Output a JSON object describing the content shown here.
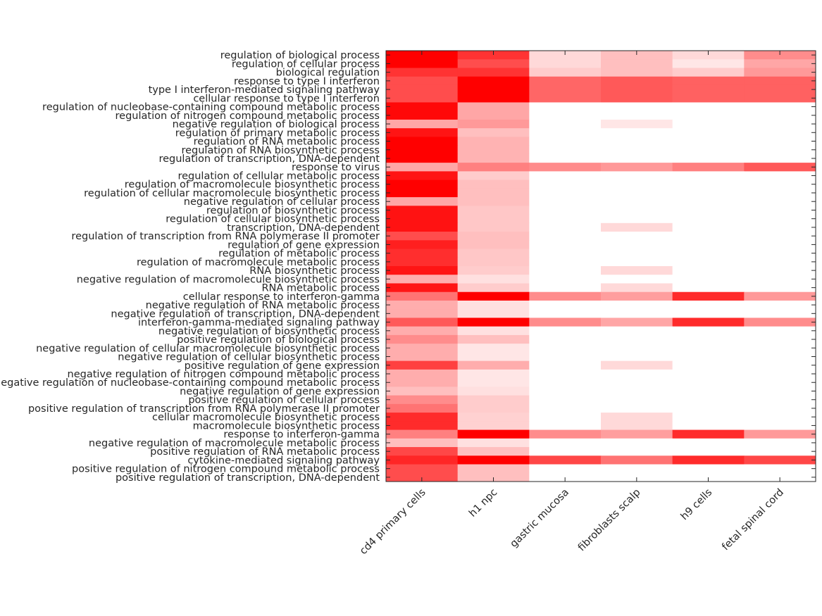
{
  "chart_data": {
    "type": "heatmap",
    "title": "",
    "xlabel": "",
    "ylabel": "",
    "color_scale": {
      "low": "#ffffff",
      "high": "#ff0000",
      "range": [
        0,
        1
      ]
    },
    "columns": [
      "cd4 primary cells",
      "h1 npc",
      "gastric mucosa",
      "fibroblasts scalp",
      "h9 cells",
      "fetal spinal cord"
    ],
    "rows": [
      "regulation of biological process",
      "regulation of cellular process",
      "biological regulation",
      "response to type I interferon",
      "type I interferon-mediated signaling pathway",
      "cellular response to type I interferon",
      "regulation of nucleobase-containing compound metabolic process",
      "regulation of nitrogen compound metabolic process",
      "negative regulation of biological process",
      "regulation of primary metabolic process",
      "regulation of RNA metabolic process",
      "regulation of RNA biosynthetic process",
      "regulation of transcription, DNA-dependent",
      "response to virus",
      "regulation of cellular metabolic process",
      "regulation of macromolecule biosynthetic process",
      "regulation of cellular macromolecule biosynthetic process",
      "negative regulation of cellular process",
      "regulation of biosynthetic process",
      "regulation of cellular biosynthetic process",
      "transcription, DNA-dependent",
      "regulation of transcription from RNA polymerase II promoter",
      "regulation of gene expression",
      "regulation of metabolic process",
      "regulation of macromolecule metabolic process",
      "RNA biosynthetic process",
      "negative regulation of macromolecule biosynthetic process",
      "RNA metabolic process",
      "cellular response to interferon-gamma",
      "negative regulation of RNA metabolic process",
      "negative regulation of transcription, DNA-dependent",
      "interferon-gamma-mediated signaling pathway",
      "negative regulation of biosynthetic process",
      "positive regulation of biological process",
      "negative regulation of cellular macromolecule biosynthetic process",
      "negative regulation of cellular biosynthetic process",
      "positive regulation of gene expression",
      "negative regulation of nitrogen compound metabolic process",
      "negative regulation of nucleobase-containing compound metabolic process",
      "negative regulation of gene expression",
      "positive regulation of cellular process",
      "positive regulation of transcription from RNA polymerase II promoter",
      "cellular macromolecule biosynthetic process",
      "macromolecule biosynthetic process",
      "response to interferon-gamma",
      "negative regulation of macromolecule metabolic process",
      "positive regulation of RNA metabolic process",
      "cytokine-mediated signaling pathway",
      "positive regulation of nitrogen compound metabolic process",
      "positive regulation of transcription, DNA-dependent"
    ],
    "values": [
      [
        1.0,
        0.8,
        0.15,
        0.25,
        0.15,
        0.45
      ],
      [
        1.0,
        0.7,
        0.15,
        0.25,
        0.1,
        0.35
      ],
      [
        0.8,
        0.8,
        0.2,
        0.25,
        0.2,
        0.4
      ],
      [
        0.7,
        1.0,
        0.6,
        0.65,
        0.62,
        0.62
      ],
      [
        0.7,
        1.0,
        0.6,
        0.65,
        0.62,
        0.62
      ],
      [
        0.7,
        1.0,
        0.6,
        0.65,
        0.62,
        0.62
      ],
      [
        0.97,
        0.35,
        0,
        0,
        0,
        0
      ],
      [
        0.97,
        0.35,
        0,
        0,
        0,
        0
      ],
      [
        0.35,
        0.4,
        0,
        0.1,
        0,
        0
      ],
      [
        0.92,
        0.25,
        0,
        0,
        0,
        0
      ],
      [
        1.0,
        0.3,
        0,
        0,
        0,
        0
      ],
      [
        1.0,
        0.3,
        0,
        0,
        0,
        0
      ],
      [
        1.0,
        0.3,
        0,
        0,
        0,
        0
      ],
      [
        0.35,
        0.5,
        0.45,
        0.4,
        0.5,
        0.65
      ],
      [
        0.92,
        0.2,
        0,
        0,
        0,
        0
      ],
      [
        1.0,
        0.25,
        0,
        0,
        0,
        0
      ],
      [
        1.0,
        0.25,
        0,
        0,
        0,
        0
      ],
      [
        0.35,
        0.25,
        0,
        0,
        0,
        0
      ],
      [
        0.93,
        0.22,
        0,
        0,
        0,
        0
      ],
      [
        0.93,
        0.22,
        0,
        0,
        0,
        0
      ],
      [
        0.93,
        0.22,
        0,
        0.15,
        0,
        0
      ],
      [
        0.7,
        0.25,
        0,
        0,
        0,
        0
      ],
      [
        0.88,
        0.25,
        0,
        0,
        0,
        0
      ],
      [
        0.82,
        0.22,
        0,
        0,
        0,
        0
      ],
      [
        0.82,
        0.22,
        0,
        0,
        0,
        0
      ],
      [
        0.92,
        0.2,
        0,
        0.15,
        0,
        0
      ],
      [
        0.32,
        0.12,
        0,
        0,
        0,
        0
      ],
      [
        0.92,
        0.2,
        0,
        0.15,
        0,
        0
      ],
      [
        0.55,
        1.0,
        0.45,
        0.38,
        0.83,
        0.4
      ],
      [
        0.32,
        0.12,
        0,
        0,
        0,
        0
      ],
      [
        0.32,
        0.12,
        0,
        0,
        0,
        0
      ],
      [
        0.65,
        1.0,
        0.45,
        0.35,
        0.83,
        0.45
      ],
      [
        0.32,
        0.12,
        0,
        0,
        0,
        0
      ],
      [
        0.45,
        0.25,
        0,
        0,
        0,
        0
      ],
      [
        0.32,
        0.1,
        0,
        0,
        0,
        0
      ],
      [
        0.32,
        0.1,
        0,
        0,
        0,
        0
      ],
      [
        0.75,
        0.32,
        0,
        0.15,
        0,
        0
      ],
      [
        0.32,
        0.1,
        0,
        0,
        0,
        0
      ],
      [
        0.32,
        0.1,
        0,
        0,
        0,
        0
      ],
      [
        0.25,
        0.12,
        0,
        0,
        0,
        0
      ],
      [
        0.45,
        0.2,
        0,
        0,
        0,
        0
      ],
      [
        0.55,
        0.2,
        0,
        0,
        0,
        0
      ],
      [
        0.83,
        0.18,
        0,
        0.15,
        0,
        0
      ],
      [
        0.83,
        0.18,
        0,
        0.15,
        0,
        0
      ],
      [
        0.5,
        1.0,
        0.45,
        0.38,
        0.83,
        0.4
      ],
      [
        0.25,
        0.12,
        0,
        0,
        0,
        0
      ],
      [
        0.72,
        0.25,
        0,
        0,
        0,
        0
      ],
      [
        0.85,
        1.0,
        0.72,
        0.55,
        0.83,
        0.72
      ],
      [
        0.7,
        0.25,
        0,
        0,
        0,
        0
      ],
      [
        0.7,
        0.25,
        0,
        0,
        0,
        0
      ]
    ],
    "grid": false,
    "legend": "none"
  }
}
